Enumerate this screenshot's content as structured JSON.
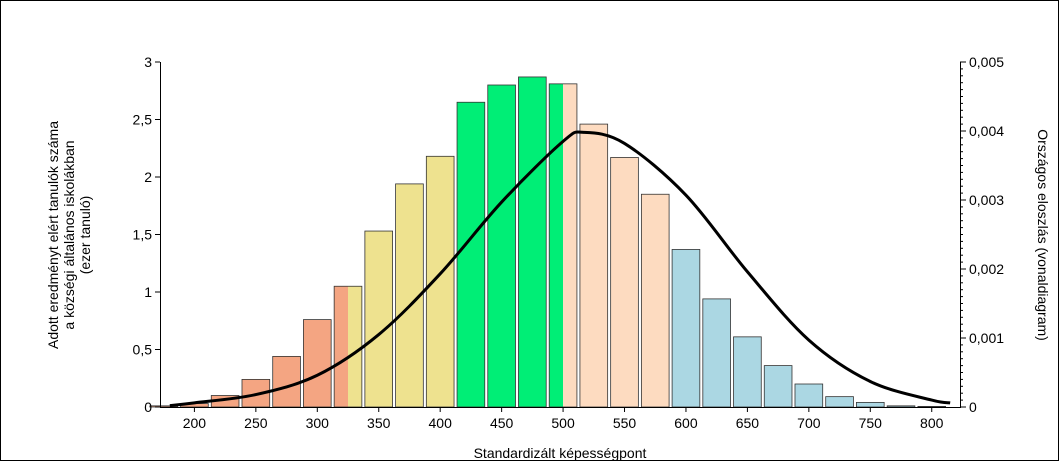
{
  "chart_data": {
    "type": "bar",
    "xlabel": "Standardizált képességpont",
    "ylabel_lines": [
      "Adott eredményt elért tanulók száma",
      "a községi általános iskolákban",
      "(ezer tanuló)"
    ],
    "y2label": "Országos eloszlás (vonaldiagram)",
    "xlim": [
      172,
      823
    ],
    "ylim": [
      0,
      3
    ],
    "y2lim": [
      0,
      0.005
    ],
    "x_ticks": [
      200,
      250,
      300,
      350,
      400,
      450,
      500,
      550,
      600,
      650,
      700,
      750,
      800
    ],
    "x_tick_labels": [
      "200",
      "250",
      "300",
      "350",
      "400",
      "450",
      "500",
      "550",
      "600",
      "650",
      "700",
      "750",
      "800"
    ],
    "y_ticks": [
      0,
      0.5,
      1,
      1.5,
      2,
      2.5,
      3
    ],
    "y_tick_labels": [
      "0",
      "0,5",
      "1",
      "1,5",
      "2",
      "2,5",
      "3"
    ],
    "y2_ticks": [
      0,
      0.001,
      0.002,
      0.003,
      0.004,
      0.005
    ],
    "y2_tick_labels": [
      "0",
      "0,001",
      "0,002",
      "0,003",
      "0,004",
      "0,005"
    ],
    "bins": [
      {
        "center": 175,
        "value": 0.01,
        "colors": [
          "#F4A582"
        ]
      },
      {
        "center": 200,
        "value": 0.03,
        "colors": [
          "#F4A582"
        ]
      },
      {
        "center": 225,
        "value": 0.1,
        "colors": [
          "#F4A582"
        ]
      },
      {
        "center": 250,
        "value": 0.24,
        "colors": [
          "#F4A582"
        ]
      },
      {
        "center": 275,
        "value": 0.44,
        "colors": [
          "#F4A582"
        ]
      },
      {
        "center": 300,
        "value": 0.76,
        "colors": [
          "#F4A582"
        ]
      },
      {
        "center": 325,
        "value": 1.05,
        "colors": [
          "#F4A582",
          "#EEE28F"
        ]
      },
      {
        "center": 350,
        "value": 1.53,
        "colors": [
          "#EEE28F"
        ]
      },
      {
        "center": 375,
        "value": 1.94,
        "colors": [
          "#EEE28F"
        ]
      },
      {
        "center": 400,
        "value": 2.18,
        "colors": [
          "#EEE28F"
        ]
      },
      {
        "center": 425,
        "value": 2.65,
        "colors": [
          "#00EE76"
        ]
      },
      {
        "center": 450,
        "value": 2.8,
        "colors": [
          "#00EE76"
        ]
      },
      {
        "center": 475,
        "value": 2.87,
        "colors": [
          "#00EE76"
        ]
      },
      {
        "center": 500,
        "value": 2.81,
        "colors": [
          "#00EE76",
          "#FDDBC0"
        ]
      },
      {
        "center": 525,
        "value": 2.46,
        "colors": [
          "#FDDBC0"
        ]
      },
      {
        "center": 550,
        "value": 2.17,
        "colors": [
          "#FDDBC0"
        ]
      },
      {
        "center": 575,
        "value": 1.85,
        "colors": [
          "#FDDBC0"
        ]
      },
      {
        "center": 600,
        "value": 1.37,
        "colors": [
          "#ABD7E3"
        ]
      },
      {
        "center": 625,
        "value": 0.94,
        "colors": [
          "#ABD7E3"
        ]
      },
      {
        "center": 650,
        "value": 0.61,
        "colors": [
          "#ABD7E3"
        ]
      },
      {
        "center": 675,
        "value": 0.36,
        "colors": [
          "#ABD7E3"
        ]
      },
      {
        "center": 700,
        "value": 0.2,
        "colors": [
          "#ABD7E3"
        ]
      },
      {
        "center": 725,
        "value": 0.09,
        "colors": [
          "#ABD7E3"
        ]
      },
      {
        "center": 750,
        "value": 0.04,
        "colors": [
          "#ABD7E3"
        ]
      },
      {
        "center": 775,
        "value": 0.01,
        "colors": [
          "#ABD7E3"
        ]
      },
      {
        "center": 800,
        "value": 0.005,
        "colors": [
          "#ABD7E3"
        ]
      }
    ],
    "line": {
      "type": "normal-curve",
      "color": "#000000",
      "x": [
        180,
        200,
        250,
        300,
        350,
        400,
        450,
        500,
        517,
        550,
        600,
        650,
        700,
        750,
        800,
        815
      ],
      "y": [
        2e-05,
        6e-05,
        0.00018,
        0.00046,
        0.00105,
        0.00193,
        0.00297,
        0.00385,
        0.00398,
        0.00382,
        0.00307,
        0.00196,
        0.00097,
        0.00037,
        0.0001,
        6e-05
      ]
    },
    "grid": false
  }
}
